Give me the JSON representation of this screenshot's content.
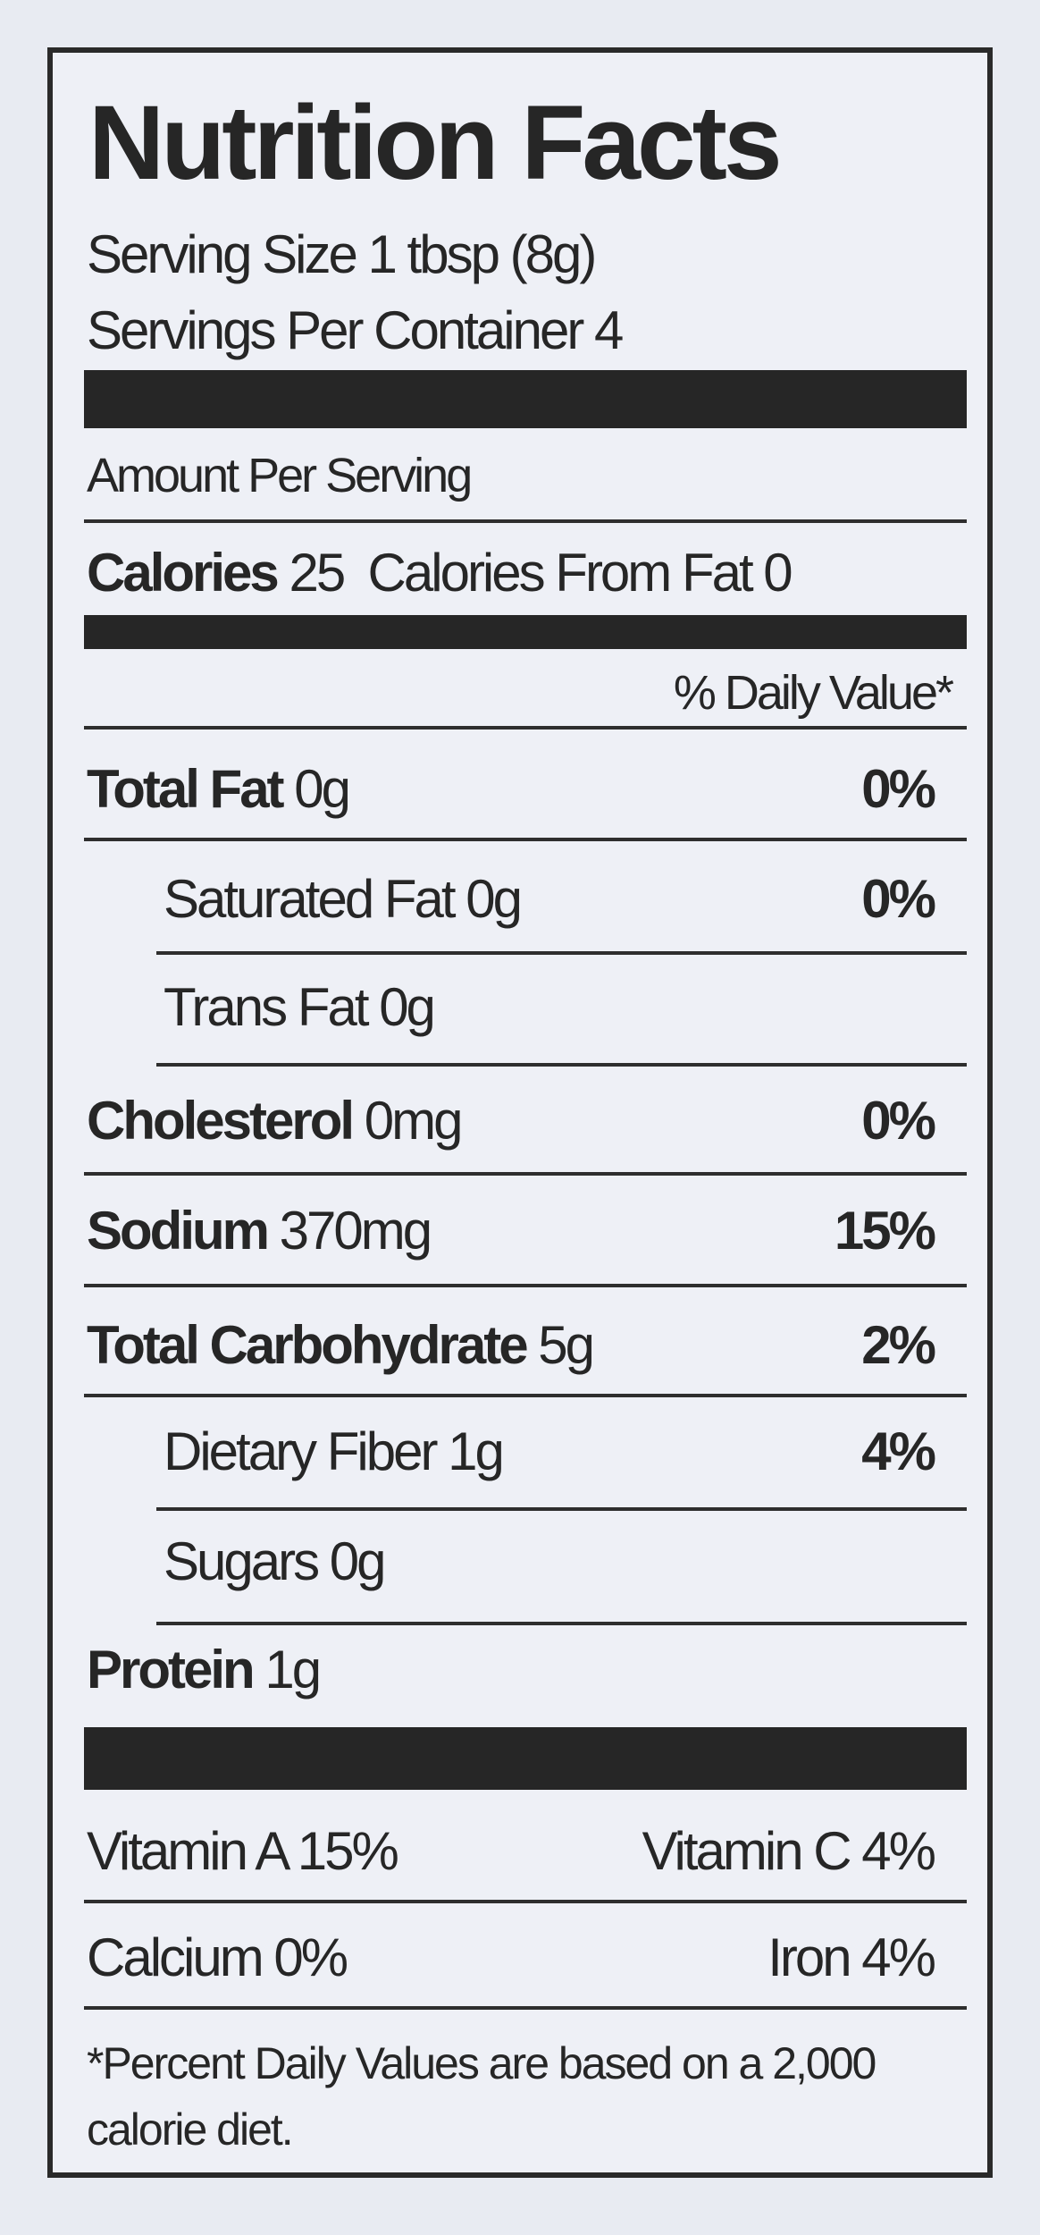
{
  "title": "Nutrition Facts",
  "serving_size": "Serving Size 1 tbsp (8g)",
  "servings_per_container": "Servings Per Container 4",
  "amount_per_serving": "Amount Per Serving",
  "calories": {
    "label": "Calories",
    "value": "25",
    "from_fat": "Calories From Fat 0"
  },
  "daily_value_header": "% Daily Value*",
  "nutrients": [
    {
      "label": "Total Fat",
      "amount": "0g",
      "dv": "0%"
    },
    {
      "label": "Saturated Fat",
      "amount": "0g",
      "dv": "0%"
    },
    {
      "label": "Trans Fat",
      "amount": "0g"
    },
    {
      "label": "Cholesterol",
      "amount": "0mg",
      "dv": "0%"
    },
    {
      "label": "Sodium",
      "amount": "370mg",
      "dv": "15%"
    },
    {
      "label": "Total Carbohydrate",
      "amount": "5g",
      "dv": "2%"
    },
    {
      "label": "Dietary Fiber",
      "amount": "1g",
      "dv": "4%"
    },
    {
      "label": "Sugars",
      "amount": "0g"
    },
    {
      "label": "Protein",
      "amount": "1g"
    }
  ],
  "vitamins": [
    {
      "left": "Vitamin A 15%",
      "right": "Vitamin C 4%"
    },
    {
      "left": "Calcium 0%",
      "right": "Iron 4%"
    }
  ],
  "footnote": [
    "*Percent Daily Values are based on a 2,000",
    "calorie diet."
  ]
}
